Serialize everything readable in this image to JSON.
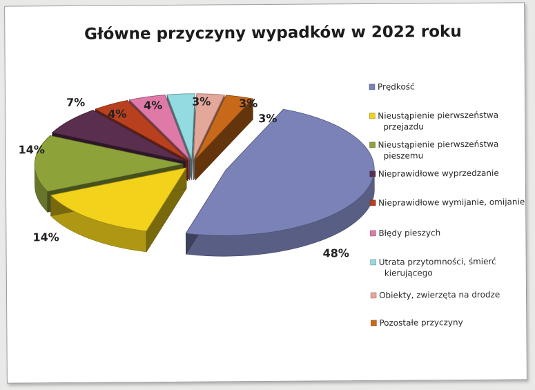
{
  "chart_data": {
    "type": "pie",
    "title": "Główne przyczyny wypadków w 2022 roku",
    "legend_position": "right",
    "slices": [
      {
        "name": "Prędkość",
        "value": 48,
        "label": "48%",
        "color": "#7b82b8"
      },
      {
        "name": "Nieustąpienie pierwszeństwa przejazdu",
        "value": 14,
        "label": "14%",
        "color": "#f2d21a"
      },
      {
        "name": "Nieustąpienie pierwszeństwa pieszemu",
        "value": 14,
        "label": "14%",
        "color": "#8ea23a"
      },
      {
        "name": "Nieprawidłowe wyprzedzanie",
        "value": 7,
        "label": "7%",
        "color": "#5a2e4e"
      },
      {
        "name": "Nieprawidłowe wymijanie, omijanie",
        "value": 4,
        "label": "4%",
        "color": "#b8401e"
      },
      {
        "name": "Błędy pieszych",
        "value": 4,
        "label": "4%",
        "color": "#df7aa8"
      },
      {
        "name": "Utrata przytomności, śmierć kierującego",
        "value": 3,
        "label": "3%",
        "color": "#93dbe0"
      },
      {
        "name": "Obiekty, zwierzęta na drodze",
        "value": 3,
        "label": "3%",
        "color": "#e3a89a"
      },
      {
        "name": "Pozostałe przyczyny",
        "value": 3,
        "label": "3%",
        "color": "#c8691a"
      }
    ],
    "legend_lines": [
      [
        "Prędkość"
      ],
      [
        "Nieustąpienie pierwszeństwa",
        "przejazdu"
      ],
      [
        "Nieustąpienie pierwszeństwa",
        "pieszemu"
      ],
      [
        "Nieprawidłowe wyprzedzanie"
      ],
      [
        "Nieprawidłowe wymijanie, omijanie"
      ],
      [
        "Błędy pieszych"
      ],
      [
        "Utrata przytomności, śmierć",
        "kierującego"
      ],
      [
        "Obiekty, zwierzęta na drodze"
      ],
      [
        "Pozostałe przyczyny"
      ]
    ]
  }
}
